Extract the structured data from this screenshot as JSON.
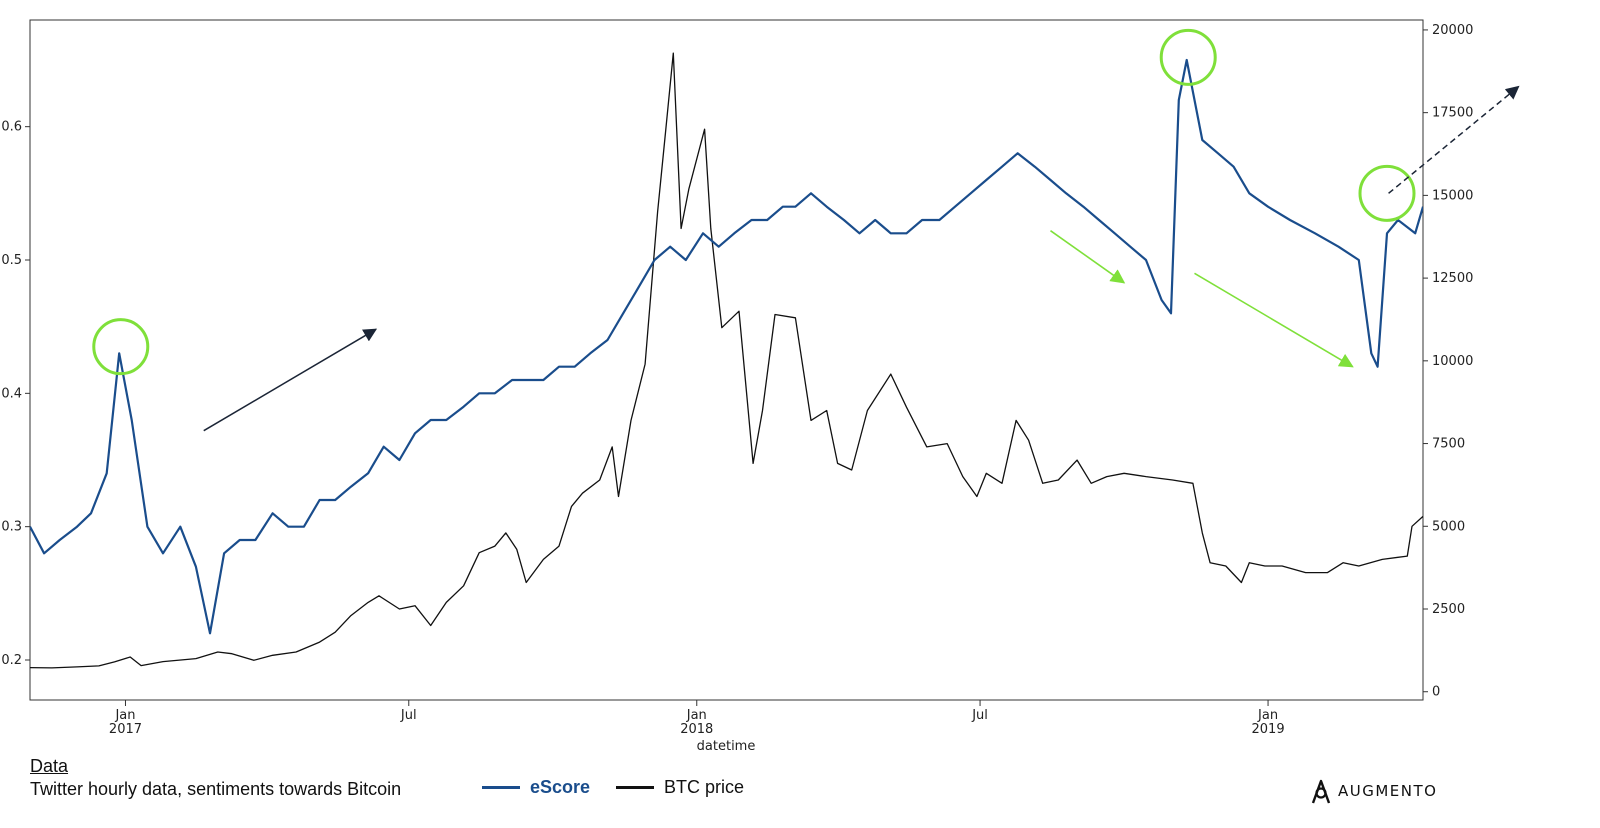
{
  "chart_data": {
    "type": "line",
    "xlabel": "datetime",
    "x_range": [
      "2016-11-01",
      "2019-04-10"
    ],
    "x_ticks": [
      {
        "date": "2017-01-01",
        "label": "Jan",
        "sublabel": "2017"
      },
      {
        "date": "2017-07-01",
        "label": "Jul",
        "sublabel": ""
      },
      {
        "date": "2018-01-01",
        "label": "Jan",
        "sublabel": "2018"
      },
      {
        "date": "2018-07-01",
        "label": "Jul",
        "sublabel": ""
      },
      {
        "date": "2019-01-01",
        "label": "Jan",
        "sublabel": "2019"
      }
    ],
    "y_left": {
      "min": 0.17,
      "max": 0.68,
      "ticks": [
        0.2,
        0.3,
        0.4,
        0.5,
        0.6
      ]
    },
    "y_right": {
      "min": -250,
      "max": 20300,
      "ticks": [
        0,
        2500,
        5000,
        7500,
        10000,
        12500,
        15000,
        17500,
        20000
      ]
    },
    "grid": false,
    "series": [
      {
        "name": "eScore",
        "axis": "left",
        "color": "#1a4d8c",
        "points": [
          [
            "2016-11-01",
            0.3
          ],
          [
            "2016-11-10",
            0.28
          ],
          [
            "2016-11-20",
            0.29
          ],
          [
            "2016-12-01",
            0.3
          ],
          [
            "2016-12-10",
            0.31
          ],
          [
            "2016-12-20",
            0.34
          ],
          [
            "2016-12-28",
            0.43
          ],
          [
            "2017-01-05",
            0.38
          ],
          [
            "2017-01-15",
            0.3
          ],
          [
            "2017-01-25",
            0.28
          ],
          [
            "2017-02-05",
            0.3
          ],
          [
            "2017-02-15",
            0.27
          ],
          [
            "2017-02-24",
            0.22
          ],
          [
            "2017-03-05",
            0.28
          ],
          [
            "2017-03-15",
            0.29
          ],
          [
            "2017-03-25",
            0.29
          ],
          [
            "2017-04-05",
            0.31
          ],
          [
            "2017-04-15",
            0.3
          ],
          [
            "2017-04-25",
            0.3
          ],
          [
            "2017-05-05",
            0.32
          ],
          [
            "2017-05-15",
            0.32
          ],
          [
            "2017-05-25",
            0.33
          ],
          [
            "2017-06-05",
            0.34
          ],
          [
            "2017-06-15",
            0.36
          ],
          [
            "2017-06-25",
            0.35
          ],
          [
            "2017-07-05",
            0.37
          ],
          [
            "2017-07-15",
            0.38
          ],
          [
            "2017-07-25",
            0.38
          ],
          [
            "2017-08-05",
            0.39
          ],
          [
            "2017-08-15",
            0.4
          ],
          [
            "2017-08-25",
            0.4
          ],
          [
            "2017-09-05",
            0.41
          ],
          [
            "2017-09-15",
            0.41
          ],
          [
            "2017-09-25",
            0.41
          ],
          [
            "2017-10-05",
            0.42
          ],
          [
            "2017-10-15",
            0.42
          ],
          [
            "2017-10-25",
            0.43
          ],
          [
            "2017-11-05",
            0.44
          ],
          [
            "2017-11-15",
            0.46
          ],
          [
            "2017-11-25",
            0.48
          ],
          [
            "2017-12-05",
            0.5
          ],
          [
            "2017-12-15",
            0.51
          ],
          [
            "2017-12-25",
            0.5
          ],
          [
            "2018-01-05",
            0.52
          ],
          [
            "2018-01-15",
            0.51
          ],
          [
            "2018-01-25",
            0.52
          ],
          [
            "2018-02-05",
            0.53
          ],
          [
            "2018-02-15",
            0.53
          ],
          [
            "2018-02-25",
            0.54
          ],
          [
            "2018-03-05",
            0.54
          ],
          [
            "2018-03-15",
            0.55
          ],
          [
            "2018-03-25",
            0.54
          ],
          [
            "2018-04-05",
            0.53
          ],
          [
            "2018-04-15",
            0.52
          ],
          [
            "2018-04-25",
            0.53
          ],
          [
            "2018-05-05",
            0.52
          ],
          [
            "2018-05-15",
            0.52
          ],
          [
            "2018-05-25",
            0.53
          ],
          [
            "2018-06-05",
            0.53
          ],
          [
            "2018-06-15",
            0.54
          ],
          [
            "2018-06-25",
            0.55
          ],
          [
            "2018-07-05",
            0.56
          ],
          [
            "2018-07-15",
            0.57
          ],
          [
            "2018-07-25",
            0.58
          ],
          [
            "2018-08-05",
            0.57
          ],
          [
            "2018-08-15",
            0.56
          ],
          [
            "2018-08-25",
            0.55
          ],
          [
            "2018-09-05",
            0.54
          ],
          [
            "2018-09-15",
            0.53
          ],
          [
            "2018-09-25",
            0.52
          ],
          [
            "2018-10-05",
            0.51
          ],
          [
            "2018-10-15",
            0.5
          ],
          [
            "2018-10-25",
            0.47
          ],
          [
            "2018-10-31",
            0.46
          ],
          [
            "2018-11-05",
            0.62
          ],
          [
            "2018-11-10",
            0.65
          ],
          [
            "2018-11-20",
            0.59
          ],
          [
            "2018-11-30",
            0.58
          ],
          [
            "2018-12-10",
            0.57
          ],
          [
            "2018-12-20",
            0.55
          ],
          [
            "2019-01-01",
            0.54
          ],
          [
            "2019-01-15",
            0.53
          ],
          [
            "2019-01-31",
            0.52
          ],
          [
            "2019-02-15",
            0.51
          ],
          [
            "2019-02-28",
            0.5
          ],
          [
            "2019-03-08",
            0.43
          ],
          [
            "2019-03-12",
            0.42
          ],
          [
            "2019-03-18",
            0.52
          ],
          [
            "2019-03-25",
            0.53
          ],
          [
            "2019-04-05",
            0.52
          ],
          [
            "2019-04-10",
            0.54
          ]
        ]
      },
      {
        "name": "BTC price",
        "axis": "right",
        "color": "#111111",
        "points": [
          [
            "2016-11-01",
            730
          ],
          [
            "2016-11-15",
            720
          ],
          [
            "2016-12-01",
            750
          ],
          [
            "2016-12-15",
            780
          ],
          [
            "2016-12-25",
            900
          ],
          [
            "2017-01-04",
            1050
          ],
          [
            "2017-01-11",
            790
          ],
          [
            "2017-01-25",
            910
          ],
          [
            "2017-02-15",
            1000
          ],
          [
            "2017-03-01",
            1200
          ],
          [
            "2017-03-10",
            1150
          ],
          [
            "2017-03-24",
            950
          ],
          [
            "2017-04-05",
            1100
          ],
          [
            "2017-04-20",
            1200
          ],
          [
            "2017-05-05",
            1500
          ],
          [
            "2017-05-15",
            1800
          ],
          [
            "2017-05-25",
            2300
          ],
          [
            "2017-06-05",
            2700
          ],
          [
            "2017-06-12",
            2900
          ],
          [
            "2017-06-25",
            2500
          ],
          [
            "2017-07-05",
            2600
          ],
          [
            "2017-07-15",
            2000
          ],
          [
            "2017-07-25",
            2700
          ],
          [
            "2017-08-05",
            3200
          ],
          [
            "2017-08-15",
            4200
          ],
          [
            "2017-08-25",
            4400
          ],
          [
            "2017-09-01",
            4800
          ],
          [
            "2017-09-08",
            4300
          ],
          [
            "2017-09-14",
            3300
          ],
          [
            "2017-09-25",
            4000
          ],
          [
            "2017-10-05",
            4400
          ],
          [
            "2017-10-13",
            5600
          ],
          [
            "2017-10-20",
            6000
          ],
          [
            "2017-10-31",
            6400
          ],
          [
            "2017-11-08",
            7400
          ],
          [
            "2017-11-12",
            5900
          ],
          [
            "2017-11-20",
            8200
          ],
          [
            "2017-11-29",
            9900
          ],
          [
            "2017-12-07",
            14500
          ],
          [
            "2017-12-12",
            16900
          ],
          [
            "2017-12-17",
            19300
          ],
          [
            "2017-12-22",
            14000
          ],
          [
            "2017-12-27",
            15200
          ],
          [
            "2018-01-06",
            17000
          ],
          [
            "2018-01-10",
            14000
          ],
          [
            "2018-01-17",
            11000
          ],
          [
            "2018-01-28",
            11500
          ],
          [
            "2018-02-06",
            6900
          ],
          [
            "2018-02-12",
            8500
          ],
          [
            "2018-02-20",
            11400
          ],
          [
            "2018-03-05",
            11300
          ],
          [
            "2018-03-15",
            8200
          ],
          [
            "2018-03-25",
            8500
          ],
          [
            "2018-04-01",
            6900
          ],
          [
            "2018-04-10",
            6700
          ],
          [
            "2018-04-20",
            8500
          ],
          [
            "2018-05-05",
            9600
          ],
          [
            "2018-05-15",
            8600
          ],
          [
            "2018-05-28",
            7400
          ],
          [
            "2018-06-10",
            7500
          ],
          [
            "2018-06-20",
            6500
          ],
          [
            "2018-06-29",
            5900
          ],
          [
            "2018-07-05",
            6600
          ],
          [
            "2018-07-15",
            6300
          ],
          [
            "2018-07-24",
            8200
          ],
          [
            "2018-08-01",
            7600
          ],
          [
            "2018-08-10",
            6300
          ],
          [
            "2018-08-20",
            6400
          ],
          [
            "2018-09-01",
            7000
          ],
          [
            "2018-09-10",
            6300
          ],
          [
            "2018-09-20",
            6500
          ],
          [
            "2018-10-01",
            6600
          ],
          [
            "2018-10-15",
            6500
          ],
          [
            "2018-11-01",
            6400
          ],
          [
            "2018-11-14",
            6300
          ],
          [
            "2018-11-20",
            4800
          ],
          [
            "2018-11-25",
            3900
          ],
          [
            "2018-12-05",
            3800
          ],
          [
            "2018-12-15",
            3300
          ],
          [
            "2018-12-20",
            3900
          ],
          [
            "2018-12-30",
            3800
          ],
          [
            "2019-01-10",
            3800
          ],
          [
            "2019-01-25",
            3600
          ],
          [
            "2019-02-08",
            3600
          ],
          [
            "2019-02-18",
            3900
          ],
          [
            "2019-02-28",
            3800
          ],
          [
            "2019-03-15",
            4000
          ],
          [
            "2019-03-31",
            4100
          ],
          [
            "2019-04-03",
            5000
          ],
          [
            "2019-04-10",
            5300
          ]
        ]
      }
    ],
    "annotations": [
      {
        "type": "circle",
        "color": "#7fe03a",
        "marks": "eScore peak",
        "x": "2016-12-29",
        "y": 0.435
      },
      {
        "type": "circle",
        "color": "#7fe03a",
        "marks": "eScore peak",
        "x": "2018-11-11",
        "y": 0.652
      },
      {
        "type": "circle",
        "color": "#7fe03a",
        "marks": "eScore peak",
        "x": "2019-03-18",
        "y": 0.55
      },
      {
        "type": "arrow",
        "style": "solid",
        "color": "#1b2536",
        "from": {
          "x": "2017-02-20",
          "y": 0.372
        },
        "to": {
          "x": "2017-06-10",
          "y": 0.448
        }
      },
      {
        "type": "arrow",
        "style": "solid",
        "color": "#7fe03a",
        "from": {
          "x": "2018-08-15",
          "y": 0.522
        },
        "to": {
          "x": "2018-10-01",
          "y": 0.483
        }
      },
      {
        "type": "arrow",
        "style": "solid",
        "color": "#7fe03a",
        "from": {
          "x": "2018-11-15",
          "y": 0.49
        },
        "to": {
          "x": "2019-02-24",
          "y": 0.42
        }
      },
      {
        "type": "arrow",
        "style": "dashed",
        "color": "#1b2536",
        "from": {
          "x": "2019-03-19",
          "y": 0.55
        },
        "to": {
          "x": "2019-06-10",
          "y": 0.63
        }
      }
    ]
  },
  "footer": {
    "data_heading": "Data",
    "data_description": "Twitter hourly data, sentiments towards Bitcoin",
    "legend": [
      {
        "label": "eScore",
        "color": "#1a4d8c"
      },
      {
        "label": "BTC price",
        "color": "#111111"
      }
    ],
    "brand": "AUGMENTO"
  }
}
